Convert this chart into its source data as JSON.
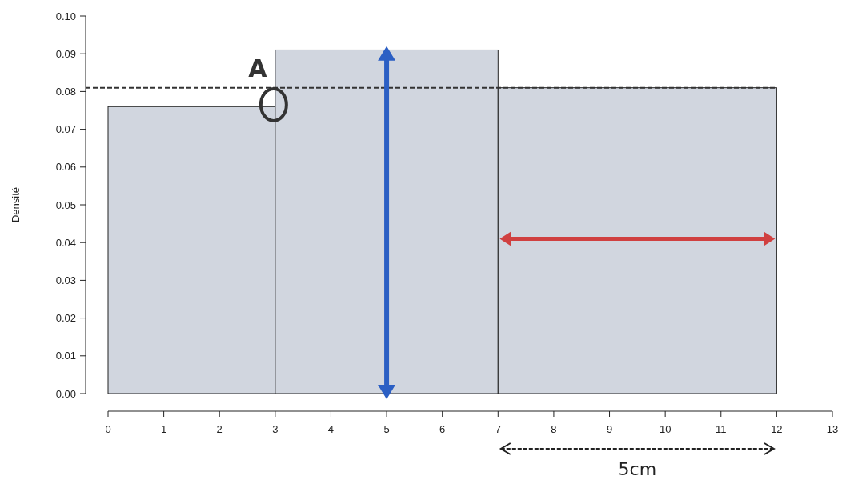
{
  "chart_data": {
    "type": "histogram",
    "ylabel": "Densité",
    "bins": [
      0,
      3,
      7,
      12
    ],
    "values": [
      0.076,
      0.091,
      0.081
    ],
    "color": "#d1d6df",
    "xlim": [
      0,
      13
    ],
    "xticks": [
      0,
      1,
      2,
      3,
      4,
      5,
      6,
      7,
      8,
      9,
      10,
      11,
      12,
      13
    ],
    "ylim": [
      0,
      0.1
    ],
    "yticks": [
      {
        "value": 0,
        "label": "0.00"
      },
      {
        "value": 0.01,
        "label": "0.01"
      },
      {
        "value": 0.02,
        "label": "0.02"
      },
      {
        "value": 0.03,
        "label": "0.03"
      },
      {
        "value": 0.04,
        "label": "0.04"
      },
      {
        "value": 0.05,
        "label": "0.05"
      },
      {
        "value": 0.06,
        "label": "0.06"
      },
      {
        "value": 0.07,
        "label": "0.07"
      },
      {
        "value": 0.08,
        "label": "0.08"
      },
      {
        "value": 0.09,
        "label": "0.09"
      },
      {
        "value": 0.1,
        "label": "0.10"
      }
    ],
    "ref_lines": [
      {
        "axis": "y",
        "value": 0.081,
        "line_style": "dashed",
        "color": "#333333"
      }
    ],
    "annotations": [
      "A",
      "5cm"
    ],
    "grid": false
  }
}
